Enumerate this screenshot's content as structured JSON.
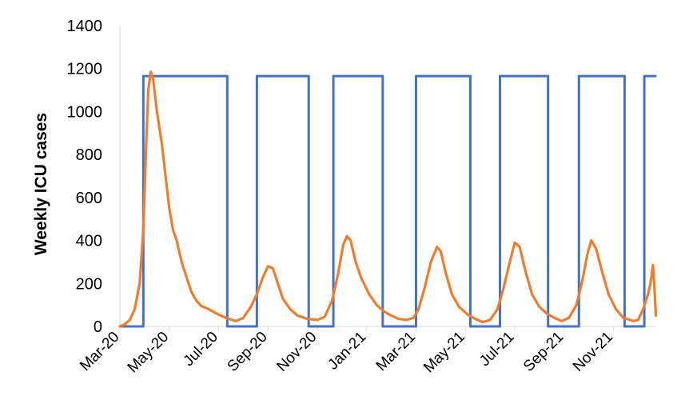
{
  "chart_data": {
    "type": "line",
    "title": "",
    "xlabel": "",
    "ylabel": "Weekly ICU cases",
    "ylim": [
      0,
      1400
    ],
    "yticks": [
      0,
      200,
      400,
      600,
      800,
      1000,
      1200,
      1400
    ],
    "xlim": [
      0,
      21.7
    ],
    "xtick_positions": [
      0,
      2,
      4,
      6,
      8,
      10,
      12,
      14,
      16,
      18,
      20
    ],
    "xtick_labels": [
      "Mar-20",
      "May-20",
      "Jul-20",
      "Sep-20",
      "Nov-20",
      "Jan-21",
      "Mar-21",
      "May-21",
      "Jul-21",
      "Sep-21",
      "Nov-21"
    ],
    "grid": false,
    "legend": "none",
    "series": [
      {
        "color": "#4472C4",
        "style": "step",
        "points": [
          [
            0,
            0
          ],
          [
            0.95,
            0
          ],
          [
            0.95,
            1165
          ],
          [
            4.35,
            1165
          ],
          [
            4.35,
            0
          ],
          [
            5.55,
            0
          ],
          [
            5.55,
            1165
          ],
          [
            7.65,
            1165
          ],
          [
            7.65,
            0
          ],
          [
            8.65,
            0
          ],
          [
            8.65,
            1165
          ],
          [
            10.65,
            1165
          ],
          [
            10.65,
            0
          ],
          [
            12.0,
            0
          ],
          [
            12.0,
            1165
          ],
          [
            14.2,
            1165
          ],
          [
            14.2,
            0
          ],
          [
            15.4,
            0
          ],
          [
            15.4,
            1165
          ],
          [
            17.35,
            1165
          ],
          [
            17.35,
            0
          ],
          [
            18.6,
            0
          ],
          [
            18.6,
            1165
          ],
          [
            20.45,
            1165
          ],
          [
            20.45,
            0
          ],
          [
            21.25,
            0
          ],
          [
            21.25,
            1165
          ],
          [
            21.7,
            1165
          ]
        ]
      },
      {
        "color": "#ED7D31",
        "style": "line",
        "points": [
          [
            0,
            0
          ],
          [
            0.2,
            10
          ],
          [
            0.4,
            30
          ],
          [
            0.6,
            80
          ],
          [
            0.8,
            200
          ],
          [
            0.95,
            450
          ],
          [
            1.05,
            800
          ],
          [
            1.15,
            1100
          ],
          [
            1.25,
            1185
          ],
          [
            1.35,
            1150
          ],
          [
            1.5,
            1000
          ],
          [
            1.7,
            850
          ],
          [
            1.85,
            700
          ],
          [
            2.0,
            550
          ],
          [
            2.15,
            450
          ],
          [
            2.3,
            400
          ],
          [
            2.5,
            300
          ],
          [
            2.7,
            230
          ],
          [
            2.9,
            160
          ],
          [
            3.1,
            120
          ],
          [
            3.3,
            95
          ],
          [
            3.6,
            80
          ],
          [
            4.0,
            55
          ],
          [
            4.4,
            35
          ],
          [
            4.7,
            25
          ],
          [
            5.0,
            40
          ],
          [
            5.3,
            90
          ],
          [
            5.55,
            150
          ],
          [
            5.8,
            230
          ],
          [
            6.0,
            280
          ],
          [
            6.2,
            270
          ],
          [
            6.4,
            200
          ],
          [
            6.6,
            130
          ],
          [
            6.9,
            80
          ],
          [
            7.2,
            50
          ],
          [
            7.6,
            35
          ],
          [
            8.0,
            30
          ],
          [
            8.3,
            45
          ],
          [
            8.6,
            120
          ],
          [
            8.85,
            250
          ],
          [
            9.05,
            380
          ],
          [
            9.2,
            420
          ],
          [
            9.35,
            400
          ],
          [
            9.55,
            300
          ],
          [
            9.8,
            220
          ],
          [
            10.1,
            150
          ],
          [
            10.4,
            100
          ],
          [
            10.7,
            70
          ],
          [
            11.0,
            50
          ],
          [
            11.3,
            35
          ],
          [
            11.6,
            30
          ],
          [
            11.9,
            40
          ],
          [
            12.1,
            80
          ],
          [
            12.35,
            180
          ],
          [
            12.6,
            300
          ],
          [
            12.85,
            370
          ],
          [
            13.0,
            350
          ],
          [
            13.2,
            250
          ],
          [
            13.45,
            150
          ],
          [
            13.75,
            90
          ],
          [
            14.1,
            55
          ],
          [
            14.4,
            35
          ],
          [
            14.7,
            20
          ],
          [
            15.0,
            30
          ],
          [
            15.3,
            80
          ],
          [
            15.55,
            180
          ],
          [
            15.8,
            300
          ],
          [
            16.0,
            390
          ],
          [
            16.2,
            370
          ],
          [
            16.45,
            250
          ],
          [
            16.7,
            150
          ],
          [
            17.0,
            90
          ],
          [
            17.3,
            60
          ],
          [
            17.6,
            40
          ],
          [
            17.9,
            25
          ],
          [
            18.2,
            40
          ],
          [
            18.5,
            100
          ],
          [
            18.75,
            220
          ],
          [
            18.95,
            340
          ],
          [
            19.1,
            400
          ],
          [
            19.3,
            360
          ],
          [
            19.55,
            250
          ],
          [
            19.8,
            150
          ],
          [
            20.1,
            80
          ],
          [
            20.4,
            40
          ],
          [
            20.8,
            25
          ],
          [
            21.0,
            30
          ],
          [
            21.2,
            80
          ],
          [
            21.4,
            150
          ],
          [
            21.5,
            200
          ],
          [
            21.6,
            285
          ],
          [
            21.65,
            200
          ],
          [
            21.72,
            50
          ]
        ]
      }
    ]
  }
}
